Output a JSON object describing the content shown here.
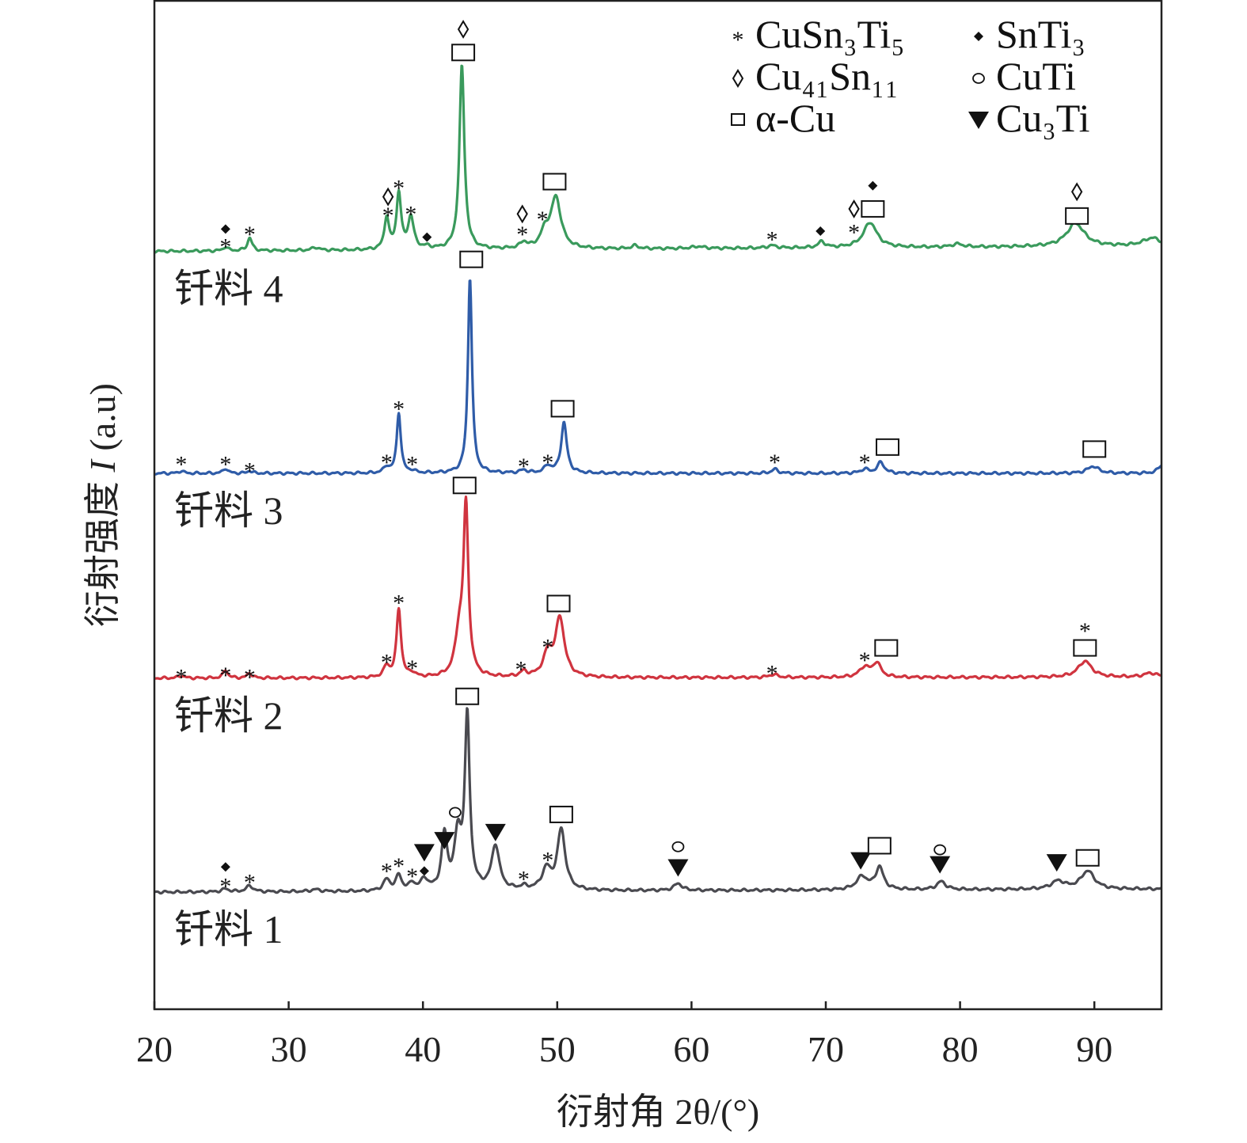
{
  "chart_data": {
    "type": "line",
    "title": "",
    "xlabel": "衍射角 2θ/(°)",
    "ylabel_prefix": "衍射强度 ",
    "ylabel_var": "I",
    "ylabel_suffix": " (a.u)",
    "xlim": [
      20,
      95
    ],
    "ylim": [
      0,
      100
    ],
    "xticks": [
      20,
      30,
      40,
      50,
      60,
      70,
      80,
      90
    ],
    "grid": false,
    "legend_position": "top-right",
    "legend": [
      {
        "symbol": "star",
        "label": "CuSn₃Ti₅"
      },
      {
        "symbol": "diamond-open",
        "label": "Cu₄₁Sn₁₁"
      },
      {
        "symbol": "square",
        "label": "α-Cu"
      },
      {
        "symbol": "diamond-filled",
        "label": "SnTi₃"
      },
      {
        "symbol": "circle",
        "label": "CuTi"
      },
      {
        "symbol": "triangle-down",
        "label": "Cu₃Ti"
      }
    ],
    "series": [
      {
        "name": "钎料 1",
        "color": "#4a4a50",
        "baseline": [
          11.6,
          11.9
        ],
        "peaks": [
          [
            25.3,
            0.3,
            0.3
          ],
          [
            27.1,
            0.6,
            0.3
          ],
          [
            32,
            0.2,
            0.4
          ],
          [
            37.3,
            1.1,
            0.3
          ],
          [
            38.2,
            1.5,
            0.25
          ],
          [
            39.2,
            0.7,
            0.25
          ],
          [
            40.1,
            1.1,
            0.3
          ],
          [
            41.6,
            5.4,
            0.25
          ],
          [
            42.6,
            5.2,
            0.3
          ],
          [
            43.3,
            17.0,
            0.22
          ],
          [
            45.4,
            4.4,
            0.35
          ],
          [
            47.5,
            0.3,
            0.3
          ],
          [
            49.2,
            2.0,
            0.4
          ],
          [
            50.3,
            6.0,
            0.35
          ],
          [
            59.0,
            0.7,
            0.35
          ],
          [
            72.7,
            1.3,
            0.5
          ],
          [
            74.0,
            2.2,
            0.35
          ],
          [
            78.6,
            0.8,
            0.4
          ],
          [
            87.3,
            0.8,
            0.6
          ],
          [
            89.5,
            1.8,
            0.6
          ]
        ],
        "markers": [
          [
            25.3,
            14.1,
            "diamond-filled"
          ],
          [
            25.3,
            12.5,
            "star"
          ],
          [
            27.1,
            12.9,
            "star"
          ],
          [
            37.3,
            14.0,
            "star"
          ],
          [
            38.2,
            14.5,
            "star"
          ],
          [
            39.2,
            13.5,
            "star"
          ],
          [
            40.1,
            13.7,
            "diamond-filled"
          ],
          [
            40.1,
            15.5,
            "triangle-down"
          ],
          [
            41.6,
            16.7,
            "triangle-down"
          ],
          [
            42.4,
            19.5,
            "circle"
          ],
          [
            43.3,
            31.0,
            "square"
          ],
          [
            45.4,
            17.5,
            "triangle-down"
          ],
          [
            47.5,
            13.2,
            "star"
          ],
          [
            49.3,
            15.1,
            "star"
          ],
          [
            50.3,
            19.3,
            "square"
          ],
          [
            59.0,
            14.0,
            "triangle-down"
          ],
          [
            59.0,
            16.1,
            "circle"
          ],
          [
            72.6,
            14.7,
            "triangle-down"
          ],
          [
            74.0,
            16.2,
            "square"
          ],
          [
            78.5,
            14.3,
            "triangle-down"
          ],
          [
            78.5,
            15.8,
            "circle"
          ],
          [
            87.2,
            14.5,
            "triangle-down"
          ],
          [
            89.5,
            15.0,
            "square"
          ]
        ]
      },
      {
        "name": "钎料 2",
        "color": "#d0343f",
        "baseline": [
          32.8,
          32.9
        ],
        "peaks": [
          [
            22,
            0.25,
            0.25
          ],
          [
            25.3,
            0.8,
            0.2
          ],
          [
            27.1,
            0.5,
            0.2
          ],
          [
            37.3,
            1.1,
            0.25
          ],
          [
            38.2,
            6.8,
            0.2
          ],
          [
            39.2,
            0.4,
            0.25
          ],
          [
            42.7,
            4.0,
            0.35
          ],
          [
            43.2,
            16.5,
            0.22
          ],
          [
            47.5,
            0.5,
            0.3
          ],
          [
            49.3,
            2.2,
            0.4
          ],
          [
            50.2,
            5.8,
            0.4
          ],
          [
            66.1,
            0.3,
            0.4
          ],
          [
            72.9,
            1.0,
            0.45
          ],
          [
            73.8,
            1.4,
            0.35
          ],
          [
            89.3,
            1.6,
            0.6
          ],
          [
            94.2,
            0.4,
            0.6
          ]
        ],
        "markers": [
          [
            22,
            33.2,
            "star"
          ],
          [
            25.3,
            33.4,
            "star"
          ],
          [
            27.1,
            33.2,
            "star"
          ],
          [
            37.3,
            34.7,
            "star"
          ],
          [
            38.2,
            40.6,
            "star"
          ],
          [
            39.2,
            34.1,
            "star"
          ],
          [
            43.1,
            51.9,
            "square"
          ],
          [
            47.3,
            34.0,
            "star"
          ],
          [
            49.3,
            36.2,
            "star"
          ],
          [
            50.1,
            40.2,
            "square"
          ],
          [
            66.0,
            33.6,
            "star"
          ],
          [
            72.9,
            34.9,
            "star"
          ],
          [
            74.5,
            35.8,
            "square"
          ],
          [
            89.3,
            37.8,
            "star"
          ],
          [
            89.3,
            35.8,
            "square"
          ]
        ]
      },
      {
        "name": "钎料 3",
        "color": "#2f5ca8",
        "baseline": [
          53.1,
          53.1
        ],
        "peaks": [
          [
            22,
            0.25,
            0.2
          ],
          [
            25.3,
            0.5,
            0.2
          ],
          [
            27.1,
            0.25,
            0.2
          ],
          [
            37.3,
            0.6,
            0.25
          ],
          [
            38.2,
            6.0,
            0.18
          ],
          [
            39.2,
            0.2,
            0.25
          ],
          [
            43.5,
            19.4,
            0.18
          ],
          [
            47.5,
            0.3,
            0.3
          ],
          [
            49.3,
            0.7,
            0.3
          ],
          [
            50.5,
            5.0,
            0.25
          ],
          [
            66.2,
            0.4,
            0.3
          ],
          [
            72.9,
            0.4,
            0.35
          ],
          [
            74.1,
            1.1,
            0.3
          ],
          [
            89.9,
            0.7,
            0.5
          ],
          [
            95,
            0.8,
            0.3
          ]
        ],
        "markers": [
          [
            22,
            54.3,
            "star"
          ],
          [
            25.3,
            54.3,
            "star"
          ],
          [
            27.1,
            53.7,
            "star"
          ],
          [
            37.3,
            54.5,
            "star"
          ],
          [
            38.2,
            59.8,
            "star"
          ],
          [
            39.2,
            54.3,
            "star"
          ],
          [
            43.6,
            74.3,
            "square"
          ],
          [
            47.5,
            54.1,
            "star"
          ],
          [
            49.3,
            54.5,
            "star"
          ],
          [
            50.4,
            59.5,
            "square"
          ],
          [
            66.2,
            54.5,
            "star"
          ],
          [
            72.9,
            54.5,
            "star"
          ],
          [
            74.6,
            55.7,
            "square"
          ],
          [
            90.0,
            55.5,
            "square"
          ]
        ]
      },
      {
        "name": "钎料 4",
        "color": "#3a9a5c",
        "baseline": [
          75.1,
          75.6
        ],
        "peaks": [
          [
            25.3,
            0.4,
            0.2
          ],
          [
            27.1,
            1.3,
            0.2
          ],
          [
            32,
            0.3,
            0.3
          ],
          [
            37.3,
            3.2,
            0.2
          ],
          [
            38.2,
            5.6,
            0.2
          ],
          [
            39.1,
            3.2,
            0.25
          ],
          [
            40.3,
            0.2,
            0.3
          ],
          [
            42.9,
            18.2,
            0.22
          ],
          [
            47.5,
            0.6,
            0.3
          ],
          [
            49.1,
            1.5,
            0.4
          ],
          [
            49.9,
            5.0,
            0.45
          ],
          [
            55.8,
            0.3,
            0.3
          ],
          [
            60.5,
            0.2,
            0.5
          ],
          [
            66,
            0.25,
            0.4
          ],
          [
            69.7,
            0.6,
            0.3
          ],
          [
            73.3,
            2.5,
            0.6
          ],
          [
            79.8,
            0.3,
            0.5
          ],
          [
            88.6,
            2.3,
            0.8
          ],
          [
            94.3,
            0.8,
            0.8
          ]
        ],
        "markers": [
          [
            25.3,
            77.3,
            "diamond-filled"
          ],
          [
            25.3,
            75.9,
            "star"
          ],
          [
            27.1,
            77.1,
            "star"
          ],
          [
            37.4,
            80.5,
            "diamond-open"
          ],
          [
            37.4,
            79.0,
            "star"
          ],
          [
            38.2,
            81.7,
            "star"
          ],
          [
            39.1,
            79.1,
            "star"
          ],
          [
            40.3,
            76.5,
            "diamond-filled"
          ],
          [
            43.0,
            97.1,
            "diamond-open"
          ],
          [
            43.0,
            94.8,
            "square"
          ],
          [
            47.4,
            78.8,
            "diamond-open"
          ],
          [
            47.4,
            77.1,
            "star"
          ],
          [
            48.9,
            78.6,
            "star"
          ],
          [
            49.8,
            82.0,
            "square"
          ],
          [
            66.0,
            76.6,
            "star"
          ],
          [
            69.6,
            77.1,
            "diamond-filled"
          ],
          [
            72.1,
            79.3,
            "diamond-open"
          ],
          [
            72.1,
            77.3,
            "star"
          ],
          [
            73.5,
            79.3,
            "square"
          ],
          [
            73.5,
            81.6,
            "diamond-filled"
          ],
          [
            88.7,
            81.0,
            "diamond-open"
          ],
          [
            88.7,
            78.6,
            "square"
          ]
        ]
      }
    ]
  }
}
